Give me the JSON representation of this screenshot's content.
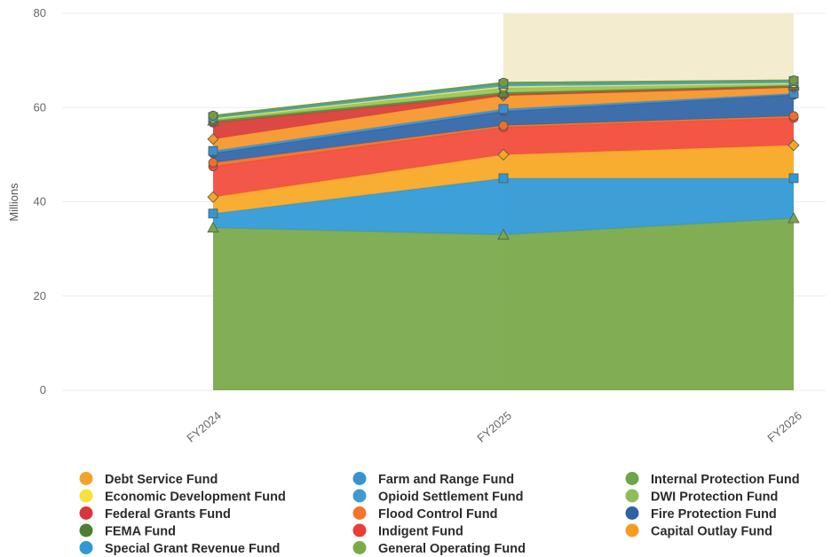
{
  "chart_data": {
    "type": "area",
    "stacked": true,
    "x": [
      "FY2024",
      "FY2025",
      "FY2026"
    ],
    "ylabel": "Millions",
    "ylim": [
      0,
      80
    ],
    "yticks": [
      "0",
      "20",
      "40",
      "60",
      "80"
    ],
    "highlight_band": {
      "from": "FY2025",
      "to": "FY2026",
      "color": "#f3ecce"
    },
    "stack_order": [
      "General Operating Fund",
      "Special Grant Revenue Fund",
      "Capital Outlay Fund",
      "Indigent Fund",
      "Flood Control Fund",
      "Fire Protection Fund",
      "Opioid Settlement Fund",
      "Debt Service Fund",
      "Federal Grants Fund",
      "FEMA Fund",
      "DWI Protection Fund",
      "Economic Development Fund",
      "Farm and Range Fund",
      "Internal Protection Fund"
    ],
    "series": [
      {
        "name": "General Operating Fund",
        "color": "#77a84a",
        "marker": "triangle",
        "values": [
          34.5,
          33.0,
          36.5
        ]
      },
      {
        "name": "Special Grant Revenue Fund",
        "color": "#2e99d6",
        "marker": "square",
        "values": [
          3.0,
          12.0,
          8.5
        ]
      },
      {
        "name": "Capital Outlay Fund",
        "color": "#f7a823",
        "marker": "diamond",
        "values": [
          3.5,
          5.0,
          7.0
        ]
      },
      {
        "name": "Indigent Fund",
        "color": "#f24a3a",
        "marker": "circle",
        "values": [
          6.5,
          5.8,
          5.8
        ]
      },
      {
        "name": "Flood Control Fund",
        "color": "#f26f26",
        "marker": "circle",
        "values": [
          0.8,
          0.4,
          0.4
        ]
      },
      {
        "name": "Fire Protection Fund",
        "color": "#2f65a8",
        "marker": "circle",
        "values": [
          2.0,
          3.0,
          4.5
        ]
      },
      {
        "name": "Opioid Settlement Fund",
        "color": "#3a8fd0",
        "marker": "square",
        "values": [
          0.5,
          0.5,
          0.3
        ]
      },
      {
        "name": "Debt Service Fund",
        "color": "#f5962b",
        "marker": "diamond",
        "values": [
          2.5,
          2.8,
          1.2
        ]
      },
      {
        "name": "Federal Grants Fund",
        "color": "#d93a35",
        "marker": "circle",
        "values": [
          3.5,
          0.3,
          0.2
        ]
      },
      {
        "name": "FEMA Fund",
        "color": "#5a8a3d",
        "marker": "triangle",
        "values": [
          0.4,
          0.4,
          0.3
        ]
      },
      {
        "name": "DWI Protection Fund",
        "color": "#9ac35a",
        "marker": "circle",
        "values": [
          0.3,
          1.0,
          0.3
        ]
      },
      {
        "name": "Economic Development Fund",
        "color": "#f2e44a",
        "marker": "circle",
        "values": [
          0.2,
          0.3,
          0.2
        ]
      },
      {
        "name": "Farm and Range Fund",
        "color": "#3ba0d4",
        "marker": "square",
        "values": [
          0.3,
          0.5,
          0.4
        ]
      },
      {
        "name": "Internal Protection Fund",
        "color": "#6f9e3f",
        "marker": "circle",
        "values": [
          0.3,
          0.3,
          0.2
        ]
      }
    ],
    "legend": {
      "placement": "bottom",
      "columns": [
        [
          {
            "label": "Debt Service Fund",
            "color": "#f5a12e"
          },
          {
            "label": "Economic Development Fund",
            "color": "#f6e23a"
          },
          {
            "label": "Federal Grants Fund",
            "color": "#d9363c"
          },
          {
            "label": "FEMA Fund",
            "color": "#4d7e34"
          },
          {
            "label": "Special Grant Revenue Fund",
            "color": "#2e99d6"
          }
        ],
        [
          {
            "label": "Farm and Range Fund",
            "color": "#3a93cf"
          },
          {
            "label": "Opioid Settlement Fund",
            "color": "#3f9ad3"
          },
          {
            "label": "Flood Control Fund",
            "color": "#f2742a"
          },
          {
            "label": "Indigent Fund",
            "color": "#ea3e34"
          },
          {
            "label": "General Operating Fund",
            "color": "#78ad45"
          }
        ],
        [
          {
            "label": "Internal Protection Fund",
            "color": "#6fa54a"
          },
          {
            "label": "DWI Protection Fund",
            "color": "#8dbe58"
          },
          {
            "label": "Fire Protection Fund",
            "color": "#2d62a3"
          },
          {
            "label": "Capital Outlay Fund",
            "color": "#f79b1f"
          }
        ]
      ]
    }
  }
}
